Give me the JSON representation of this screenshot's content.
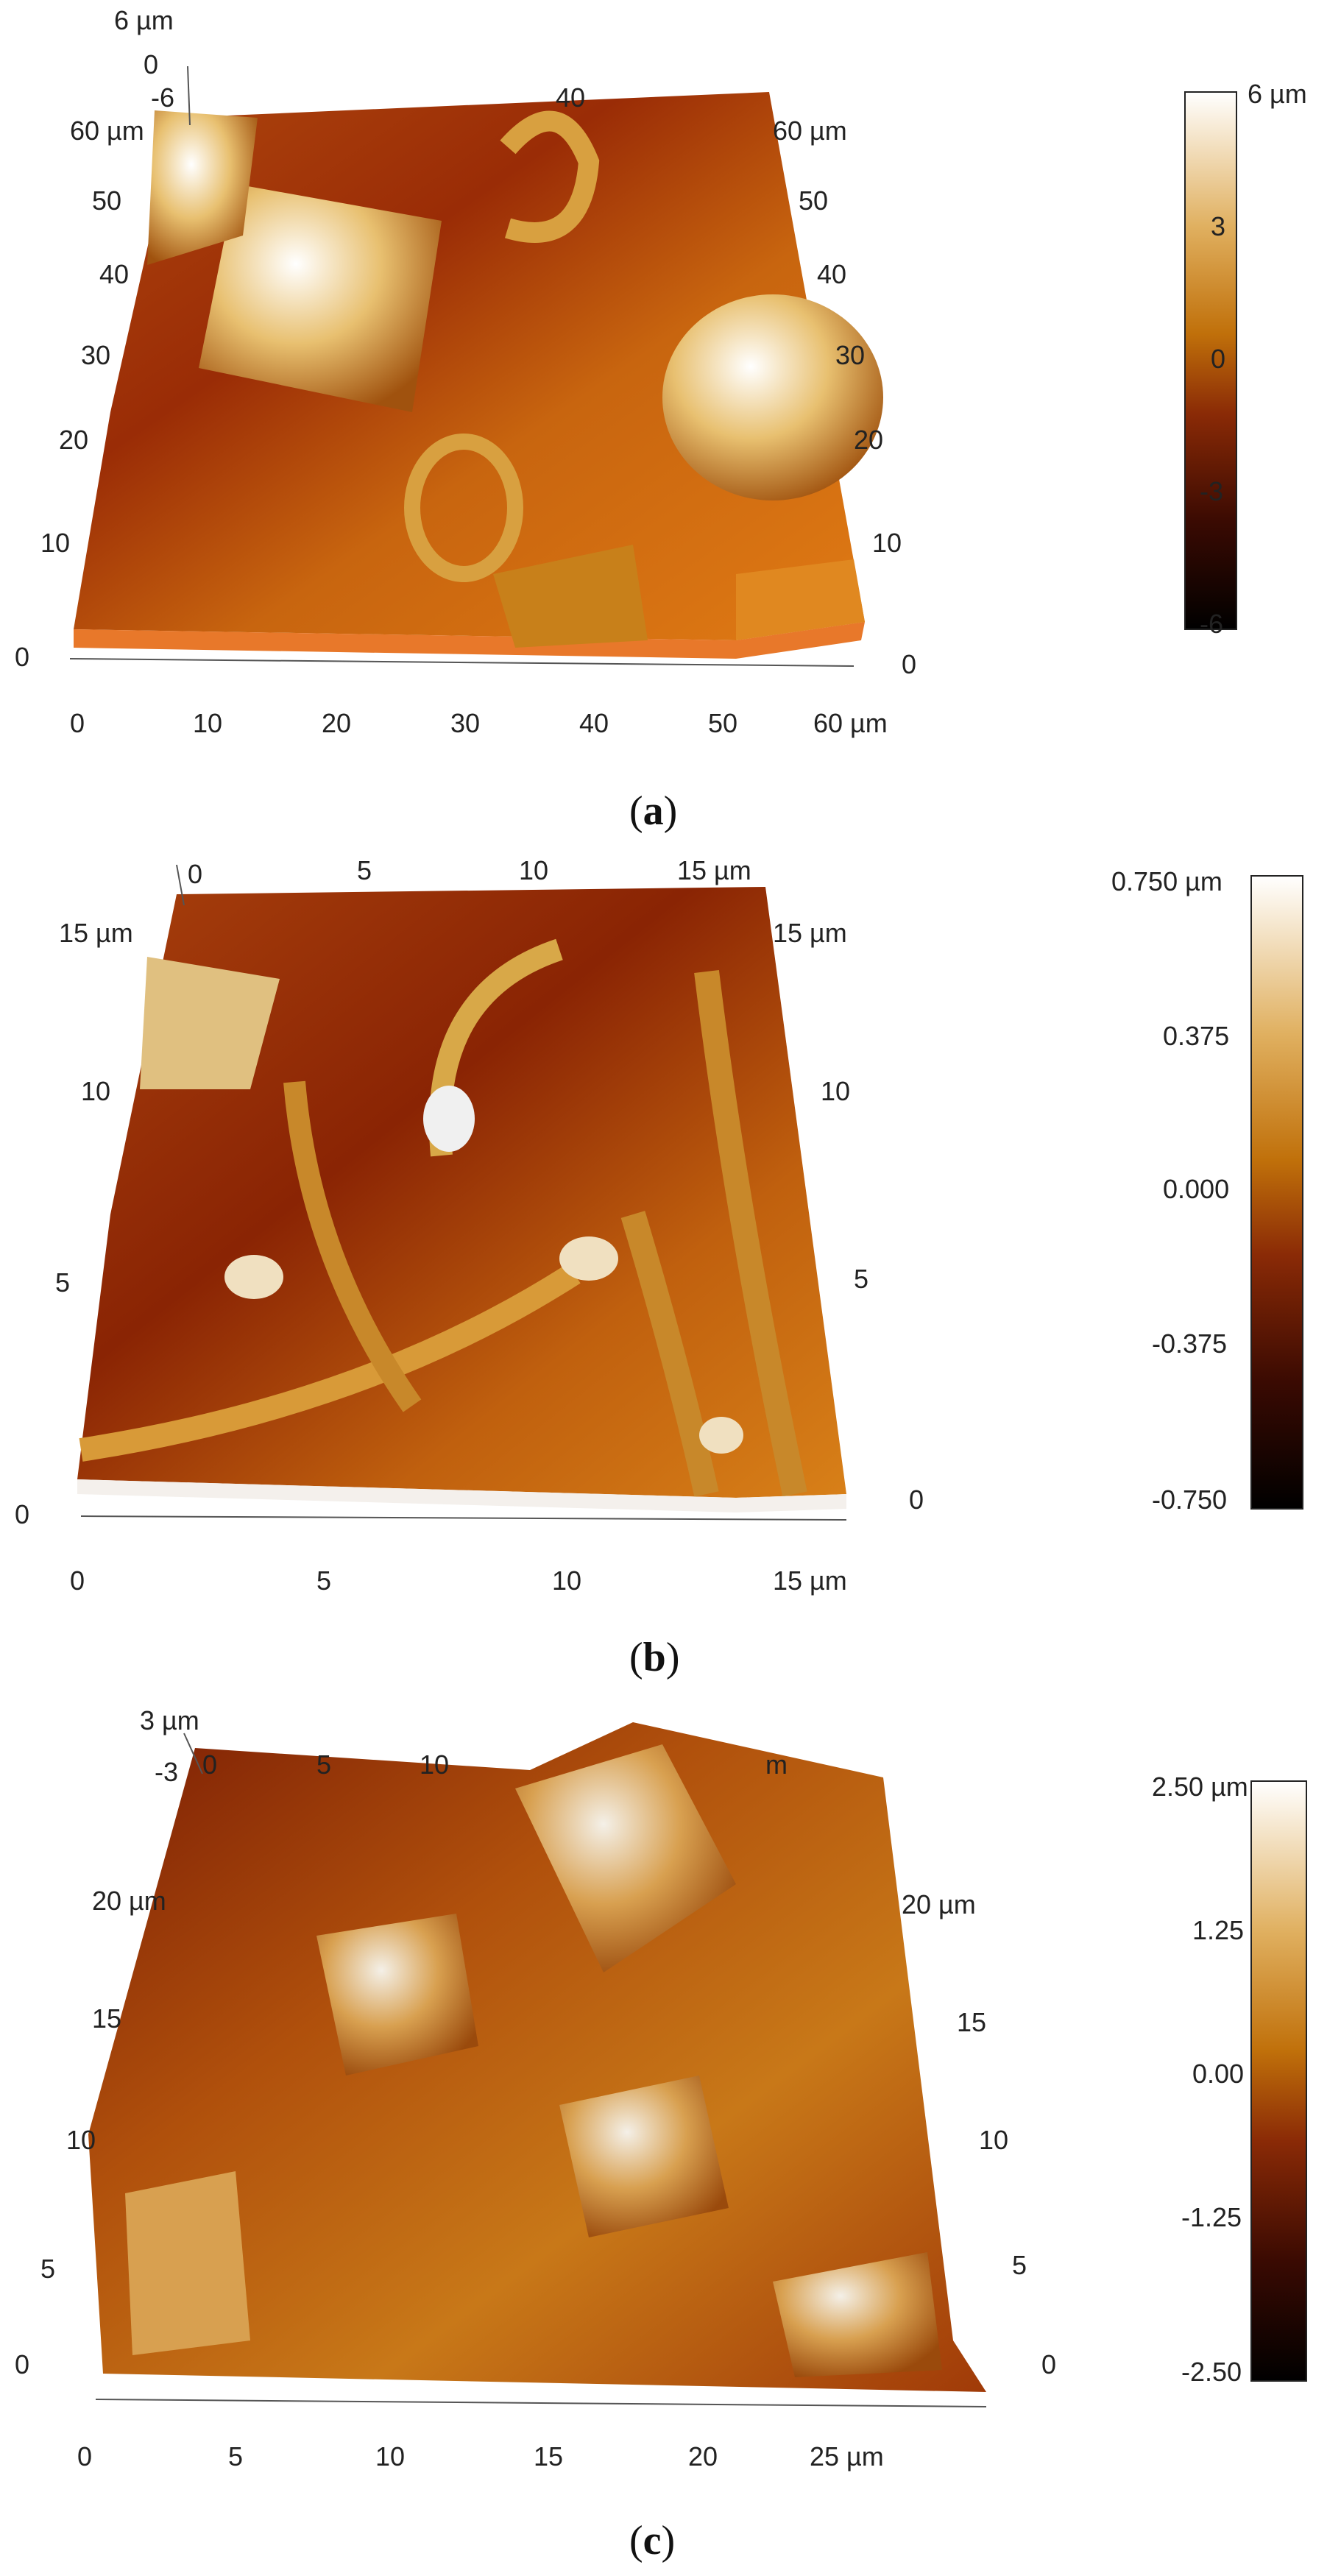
{
  "panels": [
    {
      "caption_letter": "a",
      "z_labels": [
        "6 µm",
        "0",
        "-6"
      ],
      "left_labels": [
        "60 µm",
        "50",
        "40",
        "30",
        "20",
        "10"
      ],
      "right_labels": [
        "60 µm",
        "50",
        "40",
        "30",
        "20",
        "10"
      ],
      "top_labels": [
        "40"
      ],
      "bottom_labels": [
        "0",
        "10",
        "20",
        "30",
        "40",
        "50",
        "60 µm"
      ],
      "corner_left": "0",
      "corner_right": "0",
      "colorbar_labels": [
        "6 µm",
        "3",
        "0",
        "-3",
        "-6"
      ]
    },
    {
      "caption_letter": "b",
      "z_labels": [],
      "left_labels": [
        "15 µm",
        "10",
        "5"
      ],
      "right_labels": [
        "15 µm",
        "10",
        "5"
      ],
      "top_labels": [
        "0",
        "5",
        "10",
        "15 µm"
      ],
      "bottom_labels": [
        "0",
        "5",
        "10",
        "15 µm"
      ],
      "corner_left": "0",
      "corner_right": "0",
      "colorbar_labels": [
        "0.750 µm",
        "0.375",
        "0.000",
        "-0.375",
        "-0.750"
      ]
    },
    {
      "caption_letter": "c",
      "z_labels": [
        "3 µm",
        "-3"
      ],
      "left_labels": [
        "20 µm",
        "15",
        "10",
        "5"
      ],
      "right_labels": [
        "20 µm",
        "15",
        "10",
        "5"
      ],
      "top_labels": [
        "0",
        "5",
        "10",
        "m"
      ],
      "bottom_labels": [
        "0",
        "5",
        "10",
        "15",
        "20",
        "25 µm"
      ],
      "corner_left": "0",
      "corner_right": "0",
      "colorbar_labels": [
        "2.50 µm",
        "1.25",
        "0.00",
        "-1.25",
        "-2.50"
      ]
    }
  ],
  "colors": {
    "afm_dark": "#000000",
    "afm_red": "#8a1c04",
    "afm_orange": "#c8650f",
    "afm_gold": "#d89a2e",
    "afm_white": "#ffffff"
  }
}
